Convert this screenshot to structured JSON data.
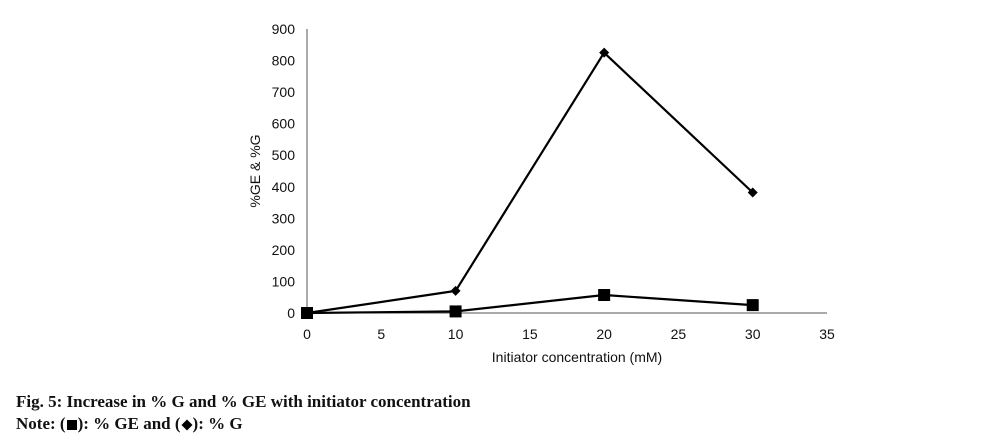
{
  "chart_data": {
    "type": "line",
    "x": [
      0,
      10,
      20,
      30
    ],
    "series": [
      {
        "marker": "diamond",
        "values": [
          0,
          70,
          825,
          382
        ]
      },
      {
        "marker": "square",
        "values": [
          0,
          5,
          57,
          25
        ]
      }
    ],
    "xlabel": "Initiator concentration (mM)",
    "ylabel": "%GE & %G",
    "xlim": [
      0,
      35
    ],
    "ylim": [
      0,
      900
    ],
    "x_ticks": [
      0,
      5,
      10,
      15,
      20,
      25,
      30,
      35
    ],
    "y_ticks": [
      0,
      100,
      200,
      300,
      400,
      500,
      600,
      700,
      800,
      900
    ],
    "grid": false,
    "line_color": "#000000"
  },
  "caption": {
    "title": "Fig. 5: Increase in % G and % GE with initiator concentration",
    "note_prefix": "Note: (",
    "note_middle": "): % GE and (",
    "note_suffix": "): % G"
  }
}
